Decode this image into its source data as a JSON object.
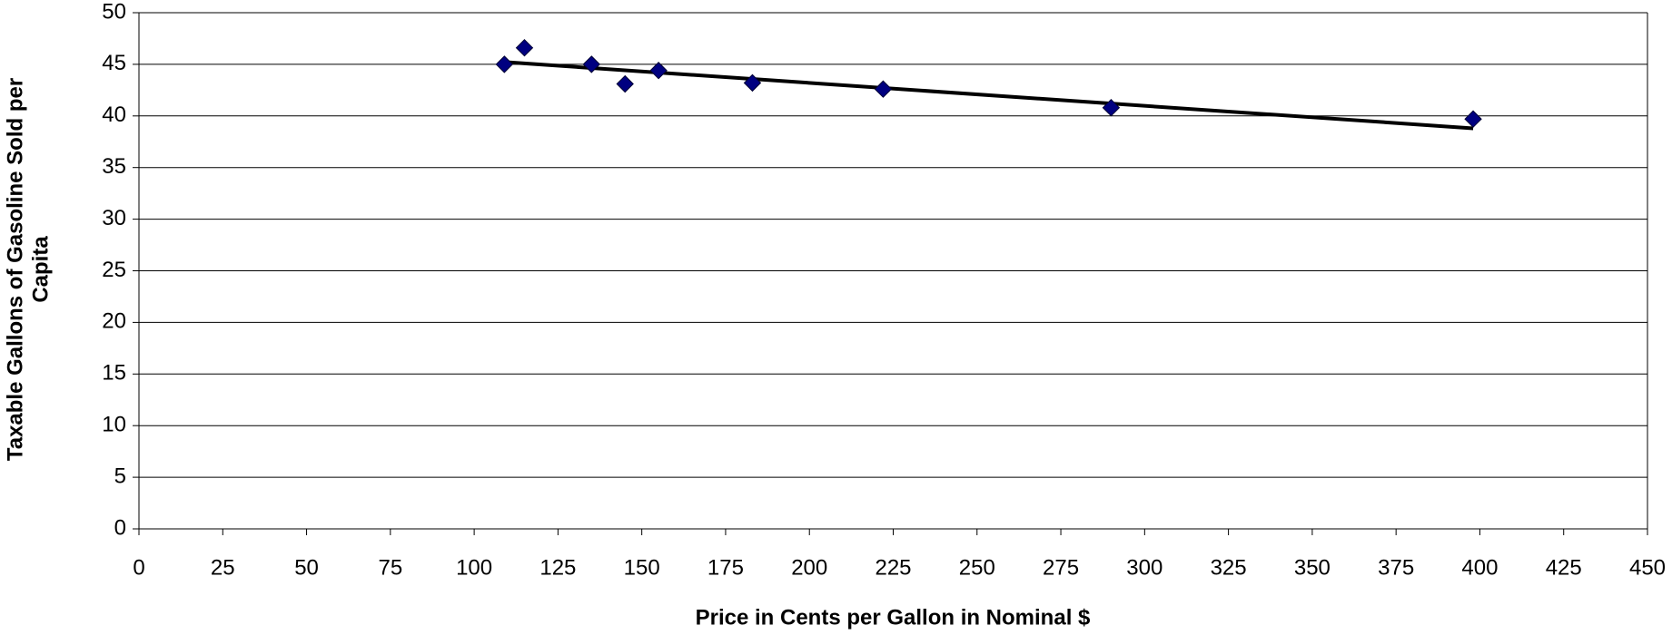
{
  "chart_data": {
    "type": "scatter",
    "xlabel": "Price in Cents per Gallon in Nominal $",
    "ylabel_lines": [
      "Taxable Gallons of Gasoline Sold per",
      "Capita"
    ],
    "x": [
      109,
      115,
      135,
      145,
      155,
      183,
      222,
      290,
      398
    ],
    "values": [
      45.0,
      46.6,
      45.0,
      43.1,
      44.4,
      43.2,
      42.6,
      40.8,
      39.7
    ],
    "color": "#000080",
    "trend": {
      "x": [
        110,
        398
      ],
      "values": [
        45.2,
        38.8
      ],
      "color": "#000000"
    },
    "xlim": [
      0,
      450
    ],
    "xticks": [
      0,
      25,
      50,
      75,
      100,
      125,
      150,
      175,
      200,
      225,
      250,
      275,
      300,
      325,
      350,
      375,
      400,
      425,
      450
    ],
    "ylim": [
      0,
      50
    ],
    "yticks": [
      0,
      5,
      10,
      15,
      20,
      25,
      30,
      35,
      40,
      45,
      50
    ],
    "grid": true
  }
}
